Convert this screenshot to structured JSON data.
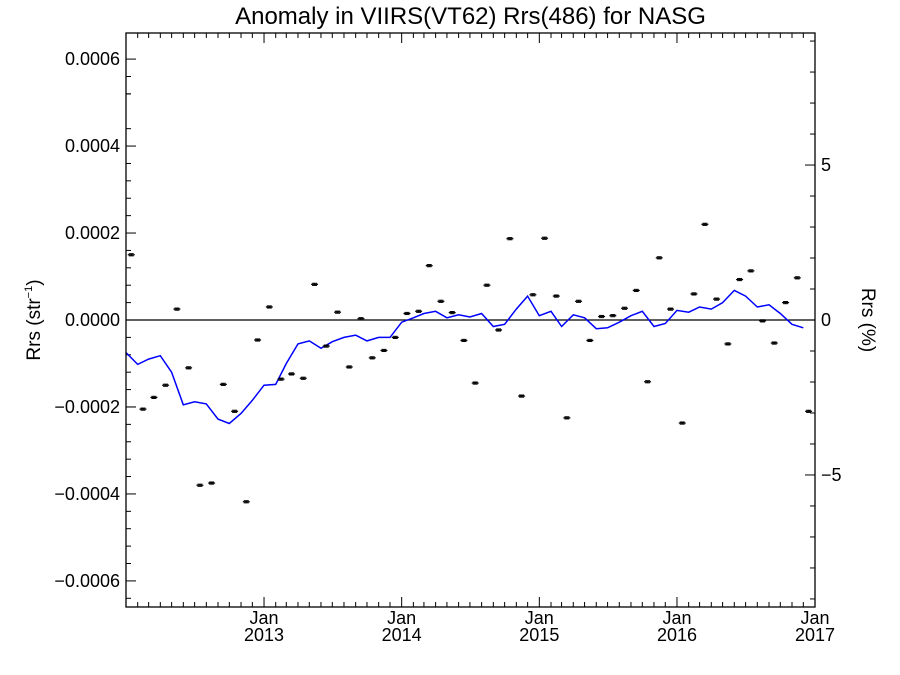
{
  "chart_data": {
    "type": "scatter",
    "title": "Anomaly in VIIRS(VT62) Rrs(486) for NASG",
    "ylabel_left": {
      "main": "Rrs (str",
      "sup": "−1",
      "close": ")"
    },
    "ylabel_right": "Rrs (%)",
    "xlim": [
      "2012-01-01",
      "2017-01-01"
    ],
    "ylim_left": [
      -0.00066,
      0.00066
    ],
    "ylim_right": [
      -9.26,
      9.26
    ],
    "x_ticks": [
      {
        "month": "Jan",
        "year": "2013",
        "date": "2013-01-01"
      },
      {
        "month": "Jan",
        "year": "2014",
        "date": "2014-01-01"
      },
      {
        "month": "Jan",
        "year": "2015",
        "date": "2015-01-01"
      },
      {
        "month": "Jan",
        "year": "2016",
        "date": "2016-01-01"
      },
      {
        "month": "Jan",
        "year": "2017",
        "date": "2017-01-01"
      }
    ],
    "y_ticks_left": [
      {
        "value": 0.0006,
        "label": "0.0006"
      },
      {
        "value": 0.0004,
        "label": "0.0004"
      },
      {
        "value": 0.0002,
        "label": "0.0002"
      },
      {
        "value": 0.0,
        "label": "0.0000"
      },
      {
        "value": -0.0002,
        "label": "−0.0002"
      },
      {
        "value": -0.0004,
        "label": "−0.0004"
      },
      {
        "value": -0.0006,
        "label": "−0.0006"
      }
    ],
    "y_ticks_right": [
      {
        "value": 5,
        "label": "5"
      },
      {
        "value": 0,
        "label": "0"
      },
      {
        "value": -5,
        "label": "−5"
      }
    ],
    "series": [
      {
        "kind": "points_with_error_bars",
        "color": "#000000",
        "points": [
          {
            "x": "2012-01-15",
            "y": 0.00015
          },
          {
            "x": "2012-02-15",
            "y": -0.000205
          },
          {
            "x": "2012-03-15",
            "y": -0.000178
          },
          {
            "x": "2012-04-15",
            "y": -0.00015
          },
          {
            "x": "2012-05-15",
            "y": 2.5e-05
          },
          {
            "x": "2012-06-15",
            "y": -0.00011
          },
          {
            "x": "2012-07-15",
            "y": -0.00038
          },
          {
            "x": "2012-08-15",
            "y": -0.000375
          },
          {
            "x": "2012-09-15",
            "y": -0.000148
          },
          {
            "x": "2012-10-15",
            "y": -0.00021
          },
          {
            "x": "2012-11-15",
            "y": -0.000418
          },
          {
            "x": "2012-12-15",
            "y": -4.6e-05
          },
          {
            "x": "2013-01-15",
            "y": 3e-05
          },
          {
            "x": "2013-02-15",
            "y": -0.000136
          },
          {
            "x": "2013-03-15",
            "y": -0.000124
          },
          {
            "x": "2013-04-15",
            "y": -0.000134
          },
          {
            "x": "2013-05-15",
            "y": 8.2e-05
          },
          {
            "x": "2013-06-15",
            "y": -6e-05
          },
          {
            "x": "2013-07-15",
            "y": 1.8e-05
          },
          {
            "x": "2013-08-15",
            "y": -0.000108
          },
          {
            "x": "2013-09-15",
            "y": 3e-06
          },
          {
            "x": "2013-10-15",
            "y": -8.7e-05
          },
          {
            "x": "2013-11-15",
            "y": -7e-05
          },
          {
            "x": "2013-12-15",
            "y": -4e-05
          },
          {
            "x": "2014-01-15",
            "y": 1.5e-05
          },
          {
            "x": "2014-02-15",
            "y": 2e-05
          },
          {
            "x": "2014-03-15",
            "y": 0.000125
          },
          {
            "x": "2014-04-15",
            "y": 4.3e-05
          },
          {
            "x": "2014-05-15",
            "y": 1.7e-05
          },
          {
            "x": "2014-06-15",
            "y": -4.7e-05
          },
          {
            "x": "2014-07-15",
            "y": -0.000145
          },
          {
            "x": "2014-08-15",
            "y": 8e-05
          },
          {
            "x": "2014-09-15",
            "y": -2.3e-05
          },
          {
            "x": "2014-10-15",
            "y": 0.000187
          },
          {
            "x": "2014-11-15",
            "y": -0.000175
          },
          {
            "x": "2014-12-15",
            "y": 5.8e-05
          },
          {
            "x": "2015-01-15",
            "y": 0.000188
          },
          {
            "x": "2015-02-15",
            "y": 5.5e-05
          },
          {
            "x": "2015-03-15",
            "y": -0.000225
          },
          {
            "x": "2015-04-15",
            "y": 4.3e-05
          },
          {
            "x": "2015-05-15",
            "y": -4.7e-05
          },
          {
            "x": "2015-06-15",
            "y": 8e-06
          },
          {
            "x": "2015-07-15",
            "y": 1e-05
          },
          {
            "x": "2015-08-15",
            "y": 2.7e-05
          },
          {
            "x": "2015-09-15",
            "y": 6.8e-05
          },
          {
            "x": "2015-10-15",
            "y": -0.000142
          },
          {
            "x": "2015-11-15",
            "y": 0.000143
          },
          {
            "x": "2015-12-15",
            "y": 2.5e-05
          },
          {
            "x": "2016-01-15",
            "y": -0.000237
          },
          {
            "x": "2016-02-15",
            "y": 6e-05
          },
          {
            "x": "2016-03-15",
            "y": 0.00022
          },
          {
            "x": "2016-04-15",
            "y": 4.8e-05
          },
          {
            "x": "2016-05-15",
            "y": -5.5e-05
          },
          {
            "x": "2016-06-15",
            "y": 9.3e-05
          },
          {
            "x": "2016-07-15",
            "y": 0.000113
          },
          {
            "x": "2016-08-15",
            "y": -2e-06
          },
          {
            "x": "2016-09-15",
            "y": -5.3e-05
          },
          {
            "x": "2016-10-15",
            "y": 4e-05
          },
          {
            "x": "2016-11-15",
            "y": 9.7e-05
          },
          {
            "x": "2016-12-15",
            "y": -0.00021
          }
        ]
      },
      {
        "kind": "line",
        "color": "#0000ff",
        "points": [
          {
            "x": "2012-01-01",
            "y": -7.5e-05
          },
          {
            "x": "2012-02-01",
            "y": -0.000102
          },
          {
            "x": "2012-03-01",
            "y": -9e-05
          },
          {
            "x": "2012-04-01",
            "y": -8.2e-05
          },
          {
            "x": "2012-05-01",
            "y": -0.00012
          },
          {
            "x": "2012-06-01",
            "y": -0.000195
          },
          {
            "x": "2012-07-01",
            "y": -0.000188
          },
          {
            "x": "2012-08-01",
            "y": -0.000193
          },
          {
            "x": "2012-09-01",
            "y": -0.000228
          },
          {
            "x": "2012-10-01",
            "y": -0.000238
          },
          {
            "x": "2012-11-01",
            "y": -0.000215
          },
          {
            "x": "2012-12-01",
            "y": -0.000185
          },
          {
            "x": "2013-01-01",
            "y": -0.00015
          },
          {
            "x": "2013-02-01",
            "y": -0.000148
          },
          {
            "x": "2013-03-01",
            "y": -0.0001
          },
          {
            "x": "2013-04-01",
            "y": -5.5e-05
          },
          {
            "x": "2013-05-01",
            "y": -4.8e-05
          },
          {
            "x": "2013-06-01",
            "y": -6.5e-05
          },
          {
            "x": "2013-07-01",
            "y": -5e-05
          },
          {
            "x": "2013-08-01",
            "y": -4e-05
          },
          {
            "x": "2013-09-01",
            "y": -3.5e-05
          },
          {
            "x": "2013-10-01",
            "y": -4.8e-05
          },
          {
            "x": "2013-11-01",
            "y": -4e-05
          },
          {
            "x": "2013-12-01",
            "y": -4e-05
          },
          {
            "x": "2014-01-01",
            "y": -5e-06
          },
          {
            "x": "2014-02-01",
            "y": 5e-06
          },
          {
            "x": "2014-03-01",
            "y": 1.5e-05
          },
          {
            "x": "2014-04-01",
            "y": 2e-05
          },
          {
            "x": "2014-05-01",
            "y": 5e-06
          },
          {
            "x": "2014-06-01",
            "y": 1.2e-05
          },
          {
            "x": "2014-07-01",
            "y": 7e-06
          },
          {
            "x": "2014-08-01",
            "y": 1.5e-05
          },
          {
            "x": "2014-09-01",
            "y": -1.5e-05
          },
          {
            "x": "2014-10-01",
            "y": -1e-05
          },
          {
            "x": "2014-11-01",
            "y": 2.5e-05
          },
          {
            "x": "2014-12-01",
            "y": 5.5e-05
          },
          {
            "x": "2015-01-01",
            "y": 1e-05
          },
          {
            "x": "2015-02-01",
            "y": 2e-05
          },
          {
            "x": "2015-03-01",
            "y": -1.5e-05
          },
          {
            "x": "2015-04-01",
            "y": 1.2e-05
          },
          {
            "x": "2015-05-01",
            "y": 5e-06
          },
          {
            "x": "2015-06-01",
            "y": -2e-05
          },
          {
            "x": "2015-07-01",
            "y": -1.8e-05
          },
          {
            "x": "2015-08-01",
            "y": -5e-06
          },
          {
            "x": "2015-09-01",
            "y": 1e-05
          },
          {
            "x": "2015-10-01",
            "y": 2e-05
          },
          {
            "x": "2015-11-01",
            "y": -1.5e-05
          },
          {
            "x": "2015-12-01",
            "y": -8e-06
          },
          {
            "x": "2016-01-01",
            "y": 2.2e-05
          },
          {
            "x": "2016-02-01",
            "y": 1.8e-05
          },
          {
            "x": "2016-03-01",
            "y": 3e-05
          },
          {
            "x": "2016-04-01",
            "y": 2.5e-05
          },
          {
            "x": "2016-05-01",
            "y": 4e-05
          },
          {
            "x": "2016-06-01",
            "y": 6.8e-05
          },
          {
            "x": "2016-07-01",
            "y": 5.5e-05
          },
          {
            "x": "2016-08-01",
            "y": 3e-05
          },
          {
            "x": "2016-09-01",
            "y": 3.5e-05
          },
          {
            "x": "2016-10-01",
            "y": 1.5e-05
          },
          {
            "x": "2016-11-01",
            "y": -1e-05
          },
          {
            "x": "2016-12-01",
            "y": -1.8e-05
          }
        ]
      }
    ],
    "reference_line_y": 0.0,
    "error_bar_half_width": 2.5e-06
  }
}
